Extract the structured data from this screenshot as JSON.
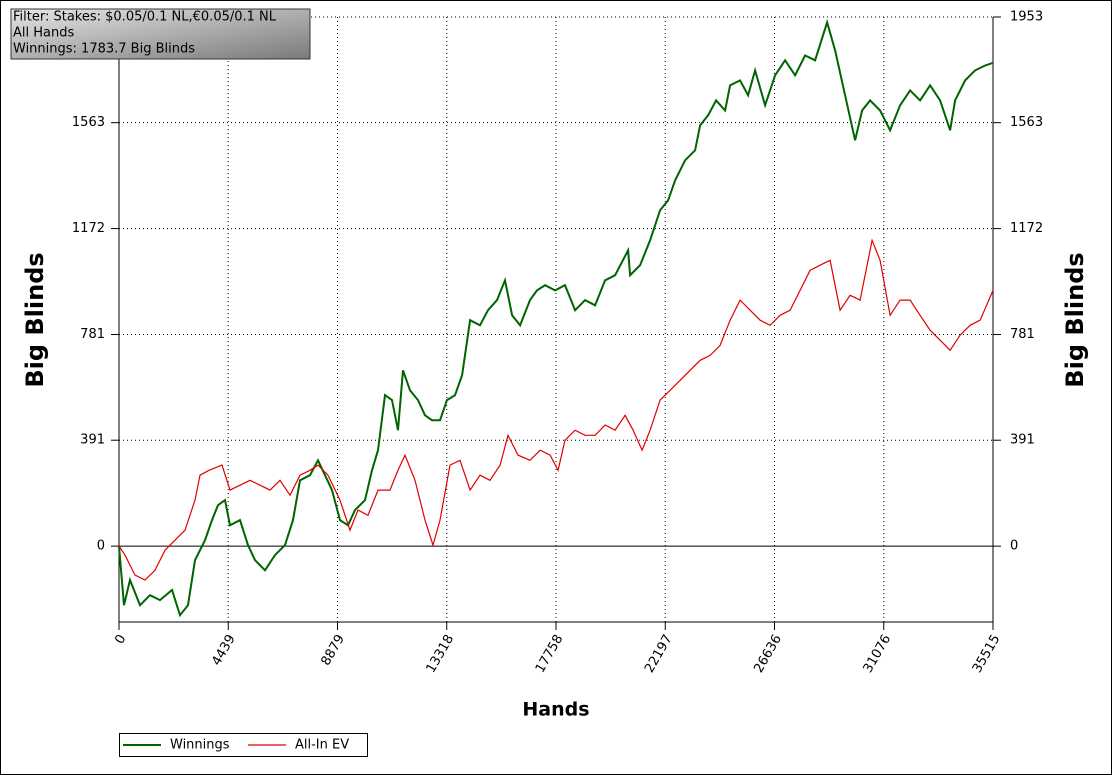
{
  "chart_data": {
    "type": "line",
    "info": [
      "Filter: Stakes: $0.05/0.1 NL,€0.05/0.1 NL",
      "All Hands",
      "Winnings: 1783.7 Big Blinds"
    ],
    "x_label": "Hands",
    "y_label": "Big Blinds",
    "xlim": [
      0,
      35515
    ],
    "ylim": [
      -280,
      1953
    ],
    "xticks": [
      0,
      4439,
      8879,
      13318,
      17758,
      22197,
      26636,
      31076,
      35515
    ],
    "yticks": [
      0,
      391,
      781,
      1172,
      1563,
      1953
    ],
    "grid": true,
    "series": [
      {
        "name": "Winnings",
        "color": "#006400",
        "x": [
          0,
          203,
          447,
          853,
          1260,
          1666,
          2154,
          2479,
          2804,
          3089,
          3495,
          3780,
          4023,
          4308,
          4511,
          4917,
          5243,
          5527,
          5933,
          6340,
          6746,
          7071,
          7356,
          7762,
          8087,
          8372,
          8656,
          8981,
          9307,
          9591,
          9997,
          10282,
          10526,
          10810,
          11095,
          11339,
          11542,
          11826,
          12151,
          12436,
          12720,
          13045,
          13330,
          13655,
          13940,
          14265,
          14671,
          14996,
          15362,
          15687,
          15972,
          16297,
          16703,
          16987,
          17313,
          17719,
          18125,
          18532,
          18938,
          19345,
          19751,
          20157,
          20686,
          20767,
          21173,
          21580,
          21986,
          22311,
          22596,
          23002,
          23408,
          23612,
          23937,
          24262,
          24628,
          24831,
          25237,
          25563,
          25847,
          26253,
          26660,
          27066,
          27473,
          27879,
          28285,
          28773,
          29098,
          29505,
          29911,
          30196,
          30521,
          30927,
          31333,
          31740,
          32146,
          32552,
          32958,
          33365,
          33771,
          33974,
          34381,
          34787,
          35194,
          35515
        ],
        "values": [
          0,
          -218,
          -125,
          -218,
          -181,
          -199,
          -162,
          -255,
          -218,
          -52,
          22,
          96,
          151,
          170,
          77,
          96,
          4,
          -52,
          -89,
          -33,
          4,
          96,
          243,
          262,
          317,
          262,
          207,
          96,
          77,
          133,
          170,
          280,
          354,
          557,
          539,
          428,
          649,
          575,
          539,
          483,
          465,
          465,
          539,
          557,
          631,
          834,
          815,
          871,
          908,
          981,
          852,
          815,
          908,
          944,
          963,
          944,
          963,
          871,
          908,
          889,
          981,
          1000,
          1092,
          1000,
          1037,
          1129,
          1240,
          1276,
          1350,
          1424,
          1461,
          1553,
          1590,
          1645,
          1608,
          1701,
          1719,
          1664,
          1756,
          1627,
          1738,
          1793,
          1738,
          1811,
          1793,
          1933,
          1830,
          1664,
          1498,
          1608,
          1645,
          1608,
          1535,
          1627,
          1682,
          1645,
          1701,
          1645,
          1535,
          1645,
          1719,
          1756,
          1774,
          1784
        ]
      },
      {
        "name": "All-In EV",
        "color": "#e00000",
        "x": [
          0,
          244,
          650,
          1057,
          1463,
          1869,
          2276,
          2682,
          3089,
          3292,
          3657,
          4186,
          4511,
          4917,
          5324,
          5730,
          6137,
          6543,
          6950,
          7356,
          7762,
          8087,
          8493,
          8981,
          9388,
          9713,
          10119,
          10526,
          11014,
          11339,
          11623,
          12029,
          12436,
          12761,
          13045,
          13452,
          13858,
          14265,
          14671,
          15077,
          15484,
          15809,
          16215,
          16703,
          17110,
          17516,
          17841,
          18125,
          18532,
          18938,
          19345,
          19751,
          20157,
          20564,
          20889,
          21255,
          21580,
          21986,
          22393,
          22799,
          23205,
          23612,
          24018,
          24425,
          24831,
          25237,
          25644,
          26050,
          26457,
          26863,
          27270,
          27676,
          28082,
          28489,
          28895,
          29301,
          29708,
          30114,
          30602,
          30927,
          31333,
          31740,
          32146,
          32552,
          32958,
          33365,
          33771,
          34177,
          34584,
          34990,
          35515
        ],
        "values": [
          0,
          -33,
          -107,
          -125,
          -89,
          -15,
          22,
          59,
          170,
          262,
          280,
          299,
          207,
          225,
          243,
          225,
          207,
          243,
          188,
          262,
          280,
          299,
          262,
          170,
          59,
          133,
          114,
          207,
          207,
          280,
          336,
          243,
          96,
          4,
          96,
          299,
          317,
          207,
          262,
          243,
          299,
          409,
          336,
          317,
          354,
          336,
          280,
          391,
          428,
          409,
          409,
          447,
          428,
          483,
          428,
          354,
          428,
          539,
          575,
          612,
          649,
          686,
          704,
          741,
          834,
          908,
          871,
          834,
          815,
          852,
          871,
          944,
          1018,
          1037,
          1055,
          871,
          926,
          908,
          1129,
          1055,
          852,
          908,
          908,
          852,
          797,
          760,
          723,
          779,
          815,
          834,
          944
        ]
      }
    ]
  }
}
